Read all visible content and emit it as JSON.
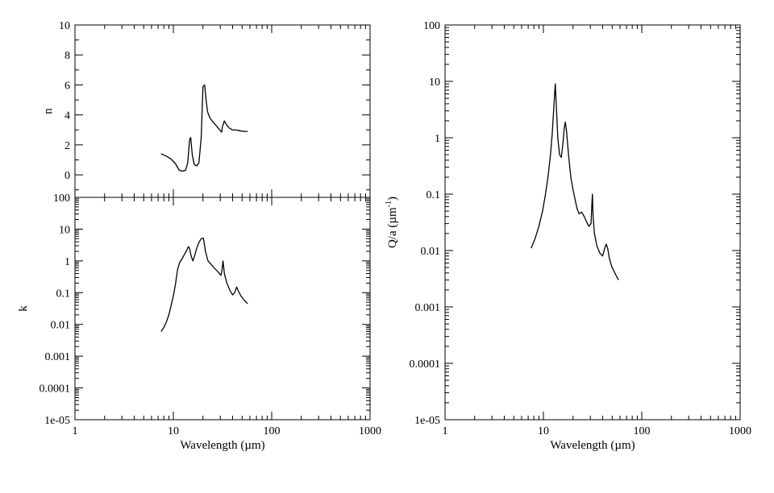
{
  "chart_data": [
    {
      "id": "n",
      "type": "line",
      "xscale": "log",
      "yscale": "linear",
      "xlim": [
        1,
        1000
      ],
      "ylim": [
        -1.5,
        10
      ],
      "ylabel": "n",
      "xlabel": "",
      "xtick_labels": [],
      "ytick_values": [
        0,
        2,
        4,
        6,
        8,
        10
      ],
      "ytick_labels": [
        "0",
        "2",
        "4",
        "6",
        "8",
        "10"
      ],
      "series": [
        {
          "x": [
            7.5,
            8.5,
            9.5,
            10.5,
            11.5,
            12.5,
            13.3,
            14.0,
            14.6,
            15.0,
            15.6,
            16.3,
            17.2,
            18.2,
            19.2,
            20.0,
            20.8,
            21.5,
            22.3,
            23.5,
            25.5,
            28.0,
            30.5,
            31.0,
            31.5,
            33.0,
            35.0,
            37.5,
            40.0,
            43.0,
            47.0,
            52.0,
            57.0
          ],
          "y": [
            1.4,
            1.25,
            1.05,
            0.75,
            0.3,
            0.25,
            0.3,
            0.8,
            2.3,
            2.5,
            1.3,
            0.7,
            0.6,
            0.8,
            2.5,
            5.9,
            6.0,
            5.0,
            4.2,
            3.8,
            3.5,
            3.2,
            2.9,
            2.85,
            3.2,
            3.6,
            3.3,
            3.1,
            3.0,
            3.0,
            2.95,
            2.9,
            2.9
          ]
        }
      ]
    },
    {
      "id": "k",
      "type": "line",
      "xscale": "log",
      "yscale": "log",
      "xlim": [
        1,
        1000
      ],
      "ylim": [
        1e-05,
        100
      ],
      "ylabel": "k",
      "xlabel": "Wavelength (µm)",
      "xtick_values": [
        1,
        10,
        100,
        1000
      ],
      "xtick_labels": [
        "1",
        "10",
        "100",
        "1000"
      ],
      "ytick_values": [
        1e-05,
        0.0001,
        0.001,
        0.01,
        0.1,
        1,
        10,
        100
      ],
      "ytick_labels": [
        "1e-05",
        "0.0001",
        "0.001",
        "0.01",
        "0.1",
        "1",
        "10",
        "100"
      ],
      "series": [
        {
          "x": [
            7.5,
            8.0,
            8.5,
            9.0,
            9.5,
            10.0,
            10.5,
            11.0,
            11.5,
            12.5,
            13.5,
            14.2,
            14.6,
            15.2,
            15.8,
            16.5,
            17.3,
            18.2,
            19.2,
            20.2,
            21.2,
            22.5,
            24.0,
            26.0,
            28.5,
            30.5,
            31.2,
            32.0,
            33.0,
            35.0,
            37.5,
            40.0,
            42.0,
            44.0,
            46.0,
            48.5,
            52.0,
            57.0
          ],
          "y": [
            0.006,
            0.008,
            0.012,
            0.02,
            0.04,
            0.08,
            0.18,
            0.5,
            0.85,
            1.3,
            2.0,
            2.8,
            2.5,
            1.4,
            1.0,
            1.5,
            2.5,
            3.8,
            5.0,
            5.2,
            2.0,
            1.0,
            0.8,
            0.6,
            0.45,
            0.35,
            0.5,
            1.0,
            0.4,
            0.2,
            0.12,
            0.085,
            0.1,
            0.15,
            0.11,
            0.08,
            0.06,
            0.045
          ]
        }
      ]
    },
    {
      "id": "qa",
      "type": "line",
      "xscale": "log",
      "yscale": "log",
      "xlim": [
        1,
        1000
      ],
      "ylim": [
        1e-05,
        100
      ],
      "ylabel": "Q/a (µm",
      "ylabel_sup": "-1",
      "ylabel_end": ")",
      "xlabel": "Wavelength (µm)",
      "xtick_values": [
        1,
        10,
        100,
        1000
      ],
      "xtick_labels": [
        "1",
        "10",
        "100",
        "1000"
      ],
      "ytick_values": [
        1e-05,
        0.0001,
        0.001,
        0.01,
        0.1,
        1,
        10,
        100
      ],
      "ytick_labels": [
        "1e-05",
        "0.0001",
        "0.001",
        "0.01",
        "0.1",
        "1",
        "10",
        "100"
      ],
      "series": [
        {
          "x": [
            7.5,
            8.2,
            9.0,
            9.8,
            10.5,
            11.2,
            11.8,
            12.3,
            12.7,
            13.0,
            13.2,
            13.5,
            14.0,
            14.6,
            15.2,
            15.8,
            16.3,
            16.7,
            17.2,
            18.0,
            19.0,
            20.0,
            21.0,
            22.0,
            23.0,
            24.5,
            26.0,
            27.5,
            29.0,
            30.5,
            31.0,
            31.5,
            32.0,
            33.0,
            35.0,
            37.5,
            40.0,
            42.0,
            43.5,
            45.0,
            47.0,
            50.0,
            54.0,
            58.0
          ],
          "y": [
            0.011,
            0.016,
            0.027,
            0.05,
            0.1,
            0.22,
            0.5,
            1.2,
            3.0,
            6.0,
            9.0,
            4.0,
            1.0,
            0.5,
            0.45,
            0.8,
            1.5,
            1.9,
            1.3,
            0.5,
            0.2,
            0.12,
            0.08,
            0.055,
            0.045,
            0.048,
            0.04,
            0.032,
            0.027,
            0.03,
            0.06,
            0.1,
            0.04,
            0.02,
            0.012,
            0.009,
            0.008,
            0.011,
            0.013,
            0.011,
            0.007,
            0.005,
            0.0038,
            0.003
          ]
        }
      ]
    }
  ]
}
